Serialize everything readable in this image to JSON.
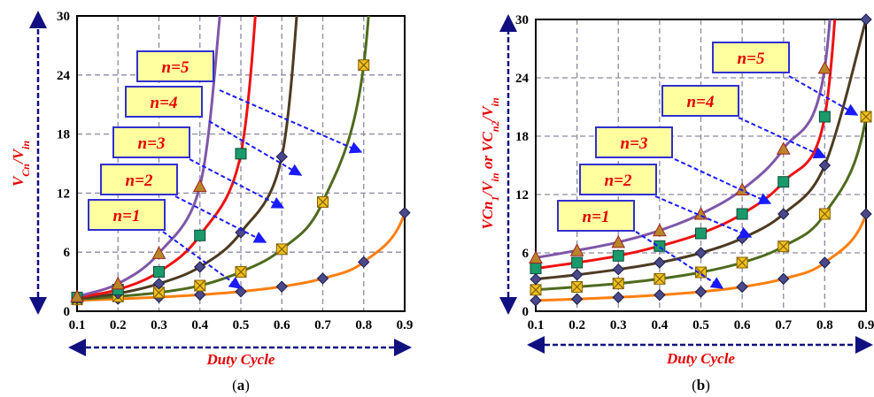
{
  "chart_data": [
    {
      "type": "line",
      "panel": "(a)",
      "caption_paren_open": "(",
      "caption_letter": "a",
      "caption_paren_close": ")",
      "xlabel": "Duty Cycle",
      "ylabel_parts": [
        "V",
        "Cn",
        "/V",
        "in"
      ],
      "xlim": [
        0.1,
        0.9
      ],
      "ylim": [
        0,
        30
      ],
      "xticks": [
        "0.1",
        "0.2",
        "0.3",
        "0.4",
        "0.5",
        "0.6",
        "0.7",
        "0.8",
        "0.9"
      ],
      "yticks": [
        "0",
        "6",
        "12",
        "18",
        "24",
        "30"
      ],
      "grid": true,
      "series": [
        {
          "name": "n=1",
          "x": [
            0.1,
            0.2,
            0.3,
            0.4,
            0.5,
            0.6,
            0.7,
            0.8,
            0.9
          ],
          "values": [
            1.1,
            1.25,
            1.43,
            1.67,
            2,
            2.5,
            3.33,
            5,
            10
          ],
          "color": "#ff7f0e",
          "marker": "diamond"
        },
        {
          "name": "n=2",
          "x": [
            0.1,
            0.2,
            0.3,
            0.4,
            0.5,
            0.6,
            0.7,
            0.8
          ],
          "values": [
            1.2,
            1.5,
            1.9,
            2.6,
            4,
            6.3,
            11.1,
            25
          ],
          "color": "#4e6b1e",
          "marker": "xsquare"
        },
        {
          "name": "n=3",
          "x": [
            0.1,
            0.2,
            0.3,
            0.4,
            0.5,
            0.6
          ],
          "values": [
            1.3,
            1.8,
            2.8,
            4.5,
            8,
            15.7
          ],
          "color": "#4d3b22",
          "marker": "diamond"
        },
        {
          "name": "n=4",
          "x": [
            0.1,
            0.2,
            0.3,
            0.4,
            0.5
          ],
          "values": [
            1.4,
            2.2,
            4,
            7.7,
            16
          ],
          "color": "#ee1111",
          "marker": "teal"
        },
        {
          "name": "n=5",
          "x": [
            0.1,
            0.2,
            0.3,
            0.4
          ],
          "values": [
            1.5,
            2.8,
            5.9,
            12.7
          ],
          "color": "#7e57a8",
          "marker": "triangle"
        }
      ]
    },
    {
      "type": "line",
      "panel": "(b)",
      "caption_paren_open": "(",
      "caption_letter": "b",
      "caption_paren_close": ")",
      "xlabel": "Duty Cycle",
      "ylabel_parts": [
        "VCn",
        "1",
        "/V",
        "in",
        " or VC",
        "n2",
        "/V",
        "in"
      ],
      "xlim": [
        0.1,
        0.9
      ],
      "ylim": [
        0,
        30
      ],
      "xticks": [
        "0.1",
        "0.2",
        "0.3",
        "0.4",
        "0.5",
        "0.6",
        "0.7",
        "0.8",
        "0.9"
      ],
      "yticks": [
        "0",
        "6",
        "12",
        "18",
        "24",
        "30"
      ],
      "grid": true,
      "series": [
        {
          "name": "n=1",
          "x": [
            0.1,
            0.2,
            0.3,
            0.4,
            0.5,
            0.6,
            0.7,
            0.8,
            0.9
          ],
          "values": [
            1.1,
            1.25,
            1.43,
            1.67,
            2,
            2.5,
            3.33,
            5,
            10
          ],
          "color": "#ff7f0e",
          "marker": "diamond"
        },
        {
          "name": "n=2",
          "x": [
            0.1,
            0.2,
            0.3,
            0.4,
            0.5,
            0.6,
            0.7,
            0.8,
            0.9
          ],
          "values": [
            2.2,
            2.5,
            2.85,
            3.33,
            4,
            5,
            6.67,
            10,
            20
          ],
          "color": "#4e6b1e",
          "marker": "xsquare"
        },
        {
          "name": "n=3",
          "x": [
            0.1,
            0.2,
            0.3,
            0.4,
            0.5,
            0.6,
            0.7,
            0.8,
            0.9
          ],
          "values": [
            3.3,
            3.75,
            4.3,
            5,
            6,
            7.5,
            10,
            15,
            30
          ],
          "color": "#4d3b22",
          "marker": "diamond"
        },
        {
          "name": "n=4",
          "x": [
            0.1,
            0.2,
            0.3,
            0.4,
            0.5,
            0.6,
            0.7,
            0.8
          ],
          "values": [
            4.4,
            5,
            5.7,
            6.7,
            8,
            10,
            13.3,
            20
          ],
          "color": "#ee1111",
          "marker": "teal"
        },
        {
          "name": "n=5",
          "x": [
            0.1,
            0.2,
            0.3,
            0.4,
            0.5,
            0.6,
            0.7,
            0.8
          ],
          "values": [
            5.5,
            6.25,
            7.1,
            8.3,
            10,
            12.5,
            16.7,
            25
          ],
          "color": "#7e57a8",
          "marker": "triangle"
        }
      ]
    }
  ],
  "colors": {
    "grid": "#8a8aa0",
    "arrow": "#1a1aff",
    "axis_arrow": "#101080",
    "label_box_fill": "#ffffa0",
    "label_box_stroke": "#3030d0",
    "label_text": "#e60000"
  }
}
